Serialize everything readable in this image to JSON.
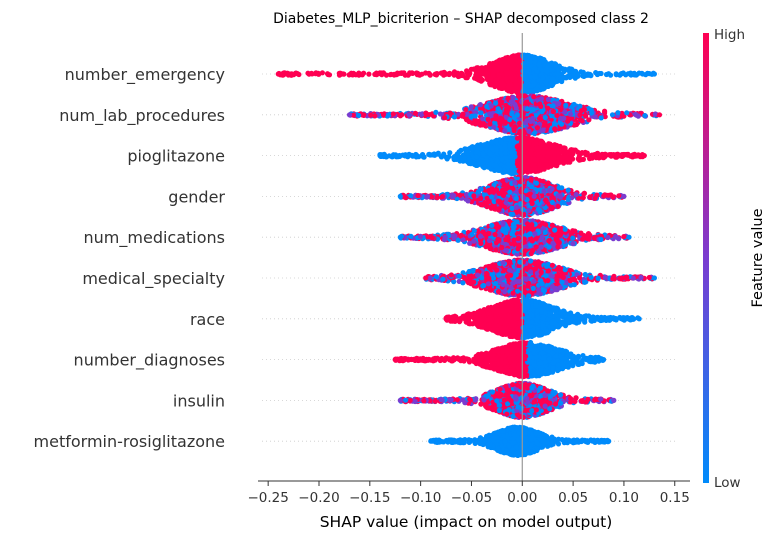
{
  "chart_data": {
    "type": "scatter",
    "subtype": "shap-beeswarm",
    "title": "Diabetes_MLP_bicriterion – SHAP decomposed class 2",
    "xlabel": "SHAP value (impact on model output)",
    "ylabel": "",
    "xlim": [
      -0.26,
      0.165
    ],
    "x_ticks": [
      -0.25,
      -0.2,
      -0.15,
      -0.1,
      -0.05,
      0.0,
      0.05,
      0.1,
      0.15
    ],
    "x_tick_labels": [
      "−0.25",
      "−0.20",
      "−0.15",
      "−0.10",
      "−0.05",
      "0.00",
      "0.05",
      "0.10",
      "0.15"
    ],
    "grid": false,
    "colorbar": {
      "label": "Feature value",
      "high_label": "High",
      "low_label": "Low",
      "high_color": "#ff0052",
      "mid_color": "#7a3cd0",
      "low_color": "#008bfb"
    },
    "features": [
      {
        "name": "number_emergency",
        "min": -0.24,
        "max": 0.13,
        "core_min": -0.02,
        "core_max": 0.015,
        "peak": 0.0,
        "spread": 0.028,
        "neg_color": "high",
        "pos_color": "low",
        "max_half_height": 18
      },
      {
        "name": "num_lab_procedures",
        "min": -0.17,
        "max": 0.135,
        "core_min": -0.06,
        "core_max": 0.06,
        "peak": 0.005,
        "spread": 0.04,
        "neg_color": "mixed",
        "pos_color": "mixed",
        "max_half_height": 18
      },
      {
        "name": "pioglitazone",
        "min": -0.14,
        "max": 0.12,
        "core_min": -0.04,
        "core_max": 0.01,
        "peak": -0.005,
        "spread": 0.035,
        "neg_color": "low",
        "pos_color": "high",
        "max_half_height": 17
      },
      {
        "name": "gender",
        "min": -0.12,
        "max": 0.1,
        "core_min": -0.03,
        "core_max": 0.03,
        "peak": 0.0,
        "spread": 0.03,
        "neg_color": "mixed",
        "pos_color": "mixed",
        "max_half_height": 18
      },
      {
        "name": "num_medications",
        "min": -0.12,
        "max": 0.105,
        "core_min": -0.03,
        "core_max": 0.03,
        "peak": 0.0,
        "spread": 0.035,
        "neg_color": "mixed",
        "pos_color": "mixed",
        "max_half_height": 16
      },
      {
        "name": "medical_specialty",
        "min": -0.095,
        "max": 0.13,
        "core_min": -0.03,
        "core_max": 0.035,
        "peak": 0.0,
        "spread": 0.035,
        "neg_color": "mixed",
        "pos_color": "mixed",
        "max_half_height": 17
      },
      {
        "name": "race",
        "min": -0.075,
        "max": 0.115,
        "core_min": -0.02,
        "core_max": 0.03,
        "peak": 0.0,
        "spread": 0.03,
        "neg_color": "high",
        "pos_color": "low",
        "max_half_height": 18
      },
      {
        "name": "number_diagnoses",
        "min": -0.125,
        "max": 0.08,
        "core_min": -0.025,
        "core_max": 0.03,
        "peak": 0.005,
        "spread": 0.03,
        "neg_color": "high",
        "pos_color": "low",
        "max_half_height": 16
      },
      {
        "name": "insulin",
        "min": -0.12,
        "max": 0.09,
        "core_min": -0.025,
        "core_max": 0.025,
        "peak": 0.0,
        "spread": 0.025,
        "neg_color": "mixed",
        "pos_color": "mixed",
        "max_half_height": 16
      },
      {
        "name": "metformin-rosiglitazone",
        "min": -0.09,
        "max": 0.085,
        "core_min": -0.01,
        "core_max": 0.03,
        "peak": -0.005,
        "spread": 0.02,
        "neg_color": "low",
        "pos_color": "low",
        "max_half_height": 13
      }
    ]
  }
}
